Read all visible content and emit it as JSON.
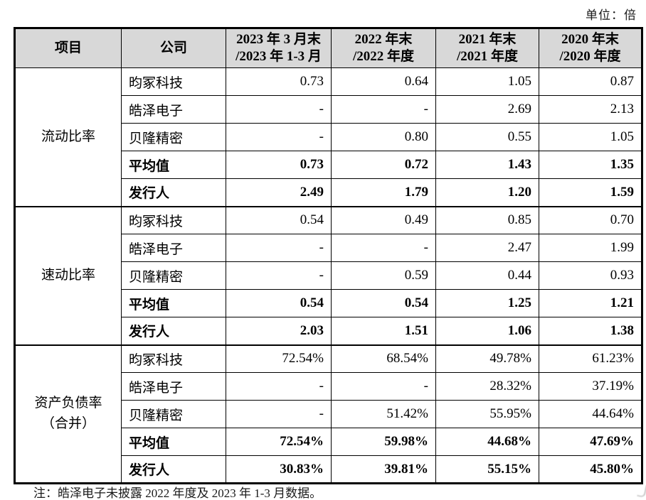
{
  "page": {
    "unit_label": "单位：倍",
    "footnote": "注：皓泽电子未披露 2022 年度及 2023 年 1-3 月数据。"
  },
  "colors": {
    "header_bg": "#d8d8d8",
    "border": "#000000",
    "text": "#000000"
  },
  "table": {
    "headers": {
      "item": "项目",
      "company": "公司",
      "periods": [
        "2023 年 3 月末\n/2023 年 1-3 月",
        "2022 年末\n/2022 年度",
        "2021 年末\n/2021 年度",
        "2020 年末\n/2020 年度"
      ]
    },
    "sections": [
      {
        "item": "流动比率",
        "rows": [
          {
            "company": "昀冢科技",
            "bold": false,
            "values": [
              "0.73",
              "0.64",
              "1.05",
              "0.87"
            ]
          },
          {
            "company": "皓泽电子",
            "bold": false,
            "values": [
              "-",
              "-",
              "2.69",
              "2.13"
            ]
          },
          {
            "company": "贝隆精密",
            "bold": false,
            "values": [
              "-",
              "0.80",
              "0.55",
              "1.05"
            ]
          },
          {
            "company": "平均值",
            "bold": true,
            "values": [
              "0.73",
              "0.72",
              "1.43",
              "1.35"
            ]
          },
          {
            "company": "发行人",
            "bold": true,
            "values": [
              "2.49",
              "1.79",
              "1.20",
              "1.59"
            ]
          }
        ]
      },
      {
        "item": "速动比率",
        "rows": [
          {
            "company": "昀冢科技",
            "bold": false,
            "values": [
              "0.54",
              "0.49",
              "0.85",
              "0.70"
            ]
          },
          {
            "company": "皓泽电子",
            "bold": false,
            "values": [
              "-",
              "-",
              "2.47",
              "1.99"
            ]
          },
          {
            "company": "贝隆精密",
            "bold": false,
            "values": [
              "-",
              "0.59",
              "0.44",
              "0.93"
            ]
          },
          {
            "company": "平均值",
            "bold": true,
            "values": [
              "0.54",
              "0.54",
              "1.25",
              "1.21"
            ]
          },
          {
            "company": "发行人",
            "bold": true,
            "values": [
              "2.03",
              "1.51",
              "1.06",
              "1.38"
            ]
          }
        ]
      },
      {
        "item": "资产负债率\n（合并）",
        "rows": [
          {
            "company": "昀冢科技",
            "bold": false,
            "values": [
              "72.54%",
              "68.54%",
              "49.78%",
              "61.23%"
            ]
          },
          {
            "company": "皓泽电子",
            "bold": false,
            "values": [
              "-",
              "-",
              "28.32%",
              "37.19%"
            ]
          },
          {
            "company": "贝隆精密",
            "bold": false,
            "values": [
              "-",
              "51.42%",
              "55.95%",
              "44.64%"
            ]
          },
          {
            "company": "平均值",
            "bold": true,
            "values": [
              "72.54%",
              "59.98%",
              "44.68%",
              "47.69%"
            ]
          },
          {
            "company": "发行人",
            "bold": true,
            "values": [
              "30.83%",
              "39.81%",
              "55.15%",
              "45.80%"
            ]
          }
        ]
      }
    ]
  }
}
